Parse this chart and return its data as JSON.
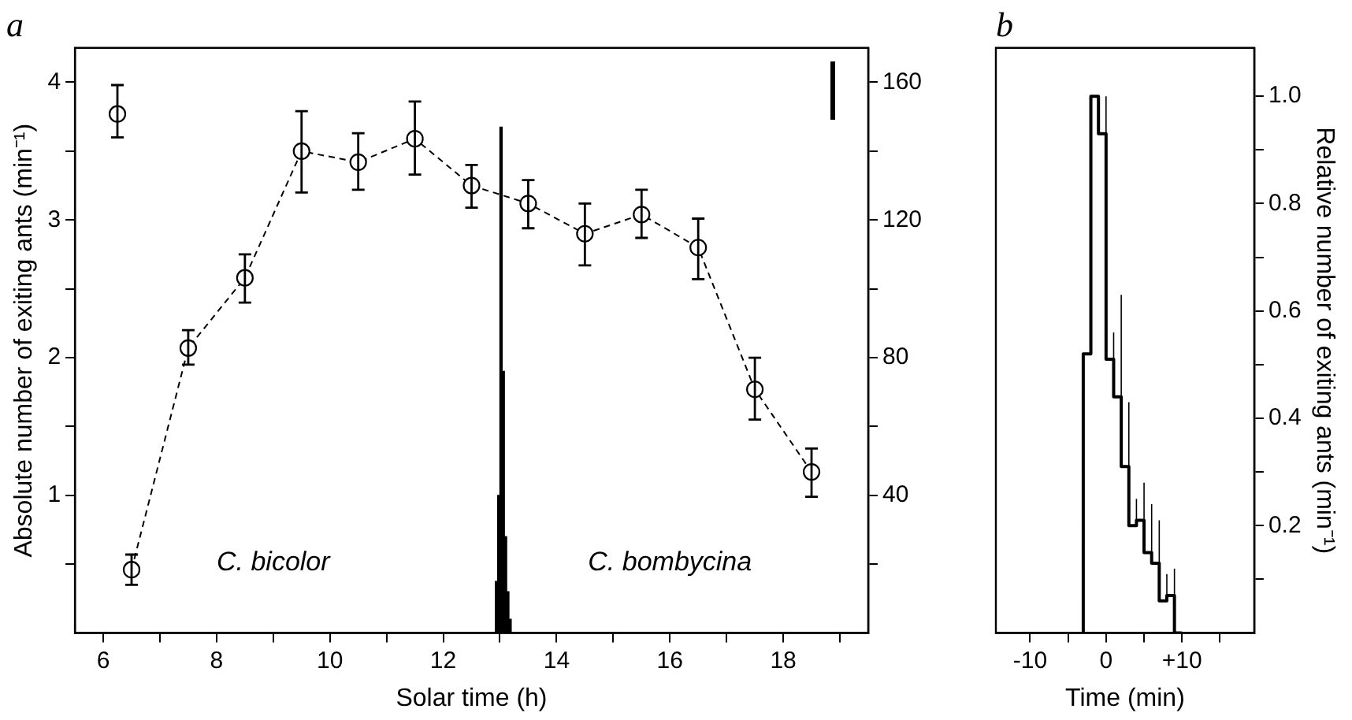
{
  "chart_data": [
    {
      "type": "line",
      "title": "a",
      "xlabel": "Solar time (h)",
      "ylabel": "Absolute number of exiting ants (min⁻¹)",
      "xlim": [
        5.5,
        19.5
      ],
      "xticks": [
        6,
        {
          "value": 7,
          "label": null
        },
        8,
        {
          "value": 9,
          "label": null
        },
        10,
        {
          "value": 11,
          "label": null
        },
        12,
        {
          "value": 13,
          "label": null
        },
        14,
        {
          "value": 15,
          "label": null
        },
        16,
        {
          "value": 17,
          "label": null
        },
        18,
        {
          "value": 19,
          "label": null
        }
      ],
      "ylim": [
        0,
        4.25
      ],
      "yticks": [
        {
          "value": 0.5,
          "label": null
        },
        1,
        {
          "value": 1.5,
          "label": null
        },
        2,
        {
          "value": 2.5,
          "label": null
        },
        3,
        {
          "value": 3.5,
          "label": null
        },
        4
      ],
      "y2lim": [
        0,
        170
      ],
      "y2ticks": [
        {
          "value": 20,
          "label": null
        },
        40,
        {
          "value": 60,
          "label": null
        },
        80,
        {
          "value": 100,
          "label": null
        },
        120,
        {
          "value": 140,
          "label": null
        },
        160
      ],
      "marker": "circle",
      "line_style": "dashed",
      "annotations": [
        "C. bicolor",
        "C. bombycina"
      ],
      "series": [
        {
          "type": "scatter",
          "color": "#000000",
          "x": [
            6.25
          ],
          "values": [
            3.77
          ],
          "errors": [
            [
              3.6,
              3.98
            ]
          ]
        },
        {
          "type": "line",
          "color": "#000000",
          "x": [
            6.5,
            7.5,
            8.5,
            9.5,
            10.5,
            11.5,
            12.5,
            13.5,
            14.5,
            15.5,
            16.5,
            17.5,
            18.5
          ],
          "values": [
            0.46,
            2.07,
            2.58,
            3.5,
            3.42,
            3.59,
            3.25,
            3.12,
            2.9,
            3.04,
            2.8,
            1.77,
            1.17
          ],
          "errors": [
            [
              0.35,
              0.57
            ],
            [
              1.95,
              2.2
            ],
            [
              2.4,
              2.75
            ],
            [
              3.2,
              3.79
            ],
            [
              3.22,
              3.63
            ],
            [
              3.33,
              3.86
            ],
            [
              3.09,
              3.4
            ],
            [
              2.94,
              3.29
            ],
            [
              2.67,
              3.12
            ],
            [
              2.87,
              3.22
            ],
            [
              2.57,
              3.01
            ],
            [
              1.55,
              2.0
            ],
            [
              0.99,
              1.34
            ]
          ]
        },
        {
          "type": "histogram",
          "axis": "y2",
          "color": "#000000",
          "bins": [
            12.92,
            12.96,
            13.0,
            13.04,
            13.08,
            13.12,
            13.16,
            13.2
          ],
          "values": [
            15,
            40,
            147,
            76,
            28,
            12,
            4
          ]
        }
      ]
    },
    {
      "type": "step",
      "title": "b",
      "xlabel": "Time (min)",
      "ylabel": "Relative number of exiting ants (min⁻¹)",
      "xlim": [
        -14.5,
        19.5
      ],
      "xticks": [
        -10,
        {
          "value": -5,
          "label": null
        },
        0,
        {
          "value": 5,
          "label": null
        },
        {
          "value": 10,
          "label": "+10"
        },
        {
          "value": 15,
          "label": null
        }
      ],
      "ylim": [
        0,
        1.09
      ],
      "yticks": [
        {
          "value": 0.1,
          "label": null
        },
        0.2,
        {
          "value": 0.3,
          "label": null
        },
        0.4,
        {
          "value": 0.5,
          "label": null
        },
        0.6,
        {
          "value": 0.7,
          "label": null
        },
        0.8,
        {
          "value": 0.9,
          "label": null
        },
        {
          "value": 1.0,
          "label": "1.0"
        }
      ],
      "color": "#000000",
      "x": [
        -3,
        -3,
        -2,
        -1,
        0,
        1,
        2,
        3,
        4,
        5,
        6,
        7,
        8,
        9,
        10
      ],
      "values": [
        0,
        0.1,
        0.52,
        1.0,
        0.93,
        0.51,
        0.44,
        0.31,
        0.2,
        0.21,
        0.15,
        0.13,
        0.06,
        0.07,
        0
      ],
      "errors": [
        null,
        [
          0.1,
          0.18
        ],
        [
          0.52,
          0.7
        ],
        null,
        [
          0.93,
          1.0
        ],
        [
          0.51,
          0.56
        ],
        [
          0.44,
          0.63
        ],
        [
          0.31,
          0.43
        ],
        [
          0.2,
          0.25
        ],
        [
          0.21,
          0.28
        ],
        [
          0.15,
          0.24
        ],
        [
          0.13,
          0.21
        ],
        [
          0.06,
          0.11
        ],
        [
          0.07,
          0.12
        ],
        null
      ]
    }
  ]
}
